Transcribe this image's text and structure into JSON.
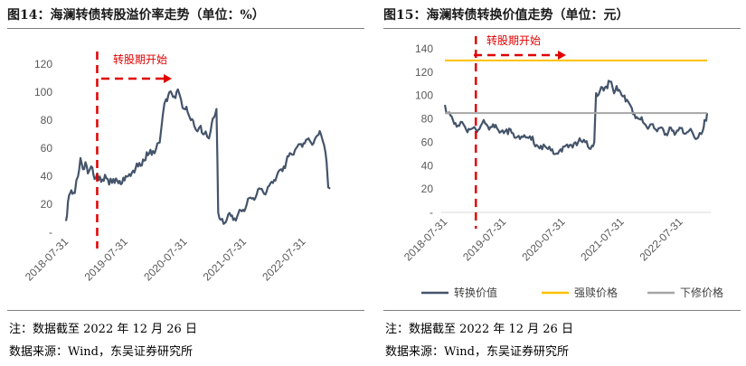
{
  "left": {
    "title": "图14：海澜转债转股溢价率走势（单位：%）",
    "note": "注：数据截至 2022 年 12 月 26 日",
    "source": "数据来源：Wind，东吴证券研究所",
    "annotation": "转股期开始"
  },
  "right": {
    "title": "图15：海澜转债转换价值走势（单位：元）",
    "note": "注：数据截至 2022 年 12 月 26 日",
    "source": "数据来源：Wind，东吴证券研究所",
    "annotation": "转股期开始"
  },
  "colors": {
    "line": "#44546a",
    "redeem": "#ffc000",
    "reset": "#a6a6a6",
    "annotation": "#e00000"
  },
  "chart_data": [
    {
      "type": "line",
      "title": "图14：海澜转债转股溢价率走势（单位：%）",
      "ylabel": "",
      "xlabel": "",
      "ylim": [
        0,
        120
      ],
      "yticks": [
        "-",
        "20",
        "40",
        "60",
        "80",
        "100",
        "120"
      ],
      "xlim": [
        "2018-07-13",
        "2022-12-26"
      ],
      "xticks": [
        "2018-07-31",
        "2019-07-31",
        "2020-07-31",
        "2021-07-31",
        "2022-07-31"
      ],
      "conversion_start": "2019-01-21",
      "series": [
        {
          "values": [
            [
              "2018-07-13",
              8
            ],
            [
              "2018-07-25",
              22
            ],
            [
              "2018-08-15",
              30
            ],
            [
              "2018-09-05",
              28
            ],
            [
              "2018-09-25",
              40
            ],
            [
              "2018-10-10",
              53
            ],
            [
              "2018-10-25",
              45
            ],
            [
              "2018-11-10",
              50
            ],
            [
              "2018-11-25",
              42
            ],
            [
              "2018-12-15",
              47
            ],
            [
              "2019-01-05",
              38
            ],
            [
              "2019-01-21",
              42
            ],
            [
              "2019-02-15",
              36
            ],
            [
              "2019-03-10",
              41
            ],
            [
              "2019-04-05",
              34
            ],
            [
              "2019-05-01",
              38
            ],
            [
              "2019-06-01",
              35
            ],
            [
              "2019-07-01",
              39
            ],
            [
              "2019-07-31",
              40
            ],
            [
              "2019-08-31",
              44
            ],
            [
              "2019-09-30",
              47
            ],
            [
              "2019-10-31",
              52
            ],
            [
              "2019-11-30",
              55
            ],
            [
              "2019-12-31",
              58
            ],
            [
              "2020-01-20",
              60
            ],
            [
              "2020-02-10",
              64
            ],
            [
              "2020-03-01",
              84
            ],
            [
              "2020-03-20",
              95
            ],
            [
              "2020-04-10",
              100
            ],
            [
              "2020-05-10",
              97
            ],
            [
              "2020-06-01",
              102
            ],
            [
              "2020-06-20",
              95
            ],
            [
              "2020-07-10",
              88
            ],
            [
              "2020-07-31",
              86
            ],
            [
              "2020-08-20",
              80
            ],
            [
              "2020-09-10",
              76
            ],
            [
              "2020-09-30",
              72
            ],
            [
              "2020-10-20",
              76
            ],
            [
              "2020-11-10",
              70
            ],
            [
              "2020-11-30",
              68
            ],
            [
              "2020-12-20",
              72
            ],
            [
              "2021-01-10",
              82
            ],
            [
              "2021-01-25",
              88
            ],
            [
              "2021-02-05",
              14
            ],
            [
              "2021-02-20",
              9
            ],
            [
              "2021-03-10",
              6
            ],
            [
              "2021-04-01",
              10
            ],
            [
              "2021-05-01",
              12
            ],
            [
              "2021-06-01",
              11
            ],
            [
              "2021-07-01",
              15
            ],
            [
              "2021-07-31",
              20
            ],
            [
              "2021-08-31",
              24
            ],
            [
              "2021-09-30",
              27
            ],
            [
              "2021-10-31",
              31
            ],
            [
              "2021-11-30",
              29
            ],
            [
              "2021-12-31",
              36
            ],
            [
              "2022-01-31",
              40
            ],
            [
              "2022-02-28",
              45
            ],
            [
              "2022-03-31",
              50
            ],
            [
              "2022-04-30",
              56
            ],
            [
              "2022-05-31",
              60
            ],
            [
              "2022-06-30",
              63
            ],
            [
              "2022-07-31",
              66
            ],
            [
              "2022-08-31",
              64
            ],
            [
              "2022-09-30",
              68
            ],
            [
              "2022-10-31",
              70
            ],
            [
              "2022-11-20",
              62
            ],
            [
              "2022-12-05",
              50
            ],
            [
              "2022-12-15",
              32
            ],
            [
              "2022-12-26",
              31
            ]
          ]
        }
      ]
    },
    {
      "type": "line",
      "title": "图15：海澜转债转换价值走势（单位：元）",
      "ylabel": "",
      "xlabel": "",
      "ylim": [
        0,
        140
      ],
      "yticks": [
        "-",
        "20",
        "40",
        "60",
        "80",
        "100",
        "120",
        "140"
      ],
      "xlim": [
        "2018-07-13",
        "2022-12-26"
      ],
      "xticks": [
        "2018-07-31",
        "2019-07-31",
        "2020-07-31",
        "2021-07-31",
        "2022-07-31"
      ],
      "conversion_start": "2019-01-21",
      "legend": [
        "转换价值",
        "强赎价格",
        "下修价格"
      ],
      "legend_position": "bottom",
      "series": [
        {
          "name": "转换价值",
          "values": [
            [
              "2018-07-13",
              92
            ],
            [
              "2018-08-01",
              85
            ],
            [
              "2018-09-01",
              79
            ],
            [
              "2018-10-10",
              74
            ],
            [
              "2018-11-15",
              73
            ],
            [
              "2018-12-15",
              71
            ],
            [
              "2019-01-21",
              71
            ],
            [
              "2019-02-20",
              74
            ],
            [
              "2019-03-20",
              76
            ],
            [
              "2019-04-30",
              73
            ],
            [
              "2019-06-01",
              72
            ],
            [
              "2019-07-31",
              71
            ],
            [
              "2019-09-01",
              68
            ],
            [
              "2019-10-31",
              65
            ],
            [
              "2019-12-31",
              62
            ],
            [
              "2020-02-28",
              57
            ],
            [
              "2020-04-30",
              53
            ],
            [
              "2020-06-30",
              54
            ],
            [
              "2020-07-31",
              57
            ],
            [
              "2020-09-30",
              60
            ],
            [
              "2020-11-30",
              60
            ],
            [
              "2021-01-10",
              57
            ],
            [
              "2021-01-25",
              60
            ],
            [
              "2021-02-05",
              102
            ],
            [
              "2021-03-01",
              104
            ],
            [
              "2021-04-01",
              107
            ],
            [
              "2021-05-01",
              112
            ],
            [
              "2021-05-20",
              106
            ],
            [
              "2021-06-20",
              104
            ],
            [
              "2021-07-31",
              100
            ],
            [
              "2021-08-31",
              93
            ],
            [
              "2021-09-30",
              85
            ],
            [
              "2021-10-31",
              80
            ],
            [
              "2021-11-30",
              76
            ],
            [
              "2021-12-31",
              73
            ],
            [
              "2022-01-31",
              72
            ],
            [
              "2022-02-28",
              72
            ],
            [
              "2022-03-31",
              70
            ],
            [
              "2022-04-30",
              69
            ],
            [
              "2022-05-31",
              70
            ],
            [
              "2022-06-30",
              70
            ],
            [
              "2022-07-31",
              68
            ],
            [
              "2022-08-31",
              69
            ],
            [
              "2022-09-30",
              67
            ],
            [
              "2022-10-31",
              64
            ],
            [
              "2022-11-20",
              67
            ],
            [
              "2022-12-05",
              73
            ],
            [
              "2022-12-15",
              79
            ],
            [
              "2022-12-26",
              85
            ]
          ]
        },
        {
          "name": "强赎价格",
          "values": [
            [
              "2018-07-13",
              130
            ],
            [
              "2022-12-26",
              130
            ]
          ]
        },
        {
          "name": "下修价格",
          "values": [
            [
              "2018-07-13",
              85
            ],
            [
              "2022-12-26",
              85
            ]
          ]
        }
      ]
    }
  ]
}
